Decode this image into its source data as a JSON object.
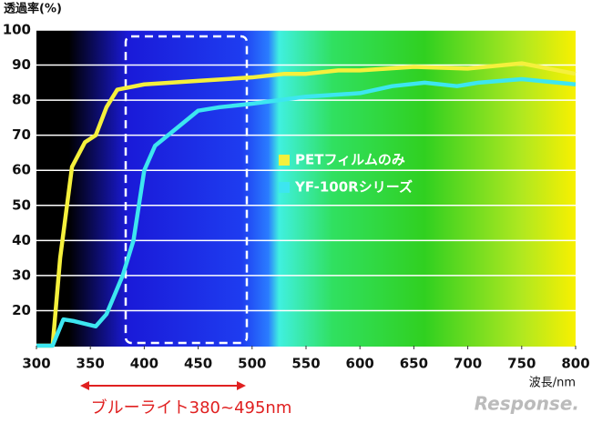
{
  "chart_data": {
    "type": "line",
    "y_label": "透過率(%)",
    "x_label": "波長/nm",
    "annotation": "ブルーライト380~495nm",
    "watermark": "Response.",
    "xlim": [
      300,
      800
    ],
    "xticks": [
      300,
      350,
      400,
      450,
      500,
      550,
      600,
      650,
      700,
      750,
      800
    ],
    "ylim": [
      10,
      100
    ],
    "yticks": [
      20,
      30,
      40,
      50,
      60,
      70,
      80,
      90,
      100
    ],
    "grid": true,
    "series": [
      {
        "name": "PETフィルムのみ",
        "color": "#f5f03c",
        "x": [
          300,
          315,
          322,
          333,
          345,
          355,
          365,
          375,
          400,
          450,
          500,
          530,
          550,
          580,
          600,
          650,
          700,
          750,
          800
        ],
        "values": [
          10,
          10,
          35,
          61,
          68,
          70,
          78,
          83,
          84.5,
          85.5,
          86.5,
          87.5,
          87.5,
          88.5,
          88.5,
          89.5,
          89,
          90.5,
          87.5
        ]
      },
      {
        "name": "YF-100Rシリーズ",
        "color": "#3de6f0",
        "x": [
          300,
          315,
          325,
          335,
          355,
          365,
          380,
          390,
          400,
          410,
          430,
          450,
          470,
          500,
          550,
          600,
          630,
          660,
          690,
          710,
          750,
          800
        ],
        "values": [
          10,
          10,
          17.5,
          17,
          15.5,
          19,
          30,
          40,
          60,
          67,
          72,
          77,
          78,
          79,
          81,
          82,
          84,
          85,
          84,
          85,
          86,
          84.5
        ]
      }
    ]
  }
}
